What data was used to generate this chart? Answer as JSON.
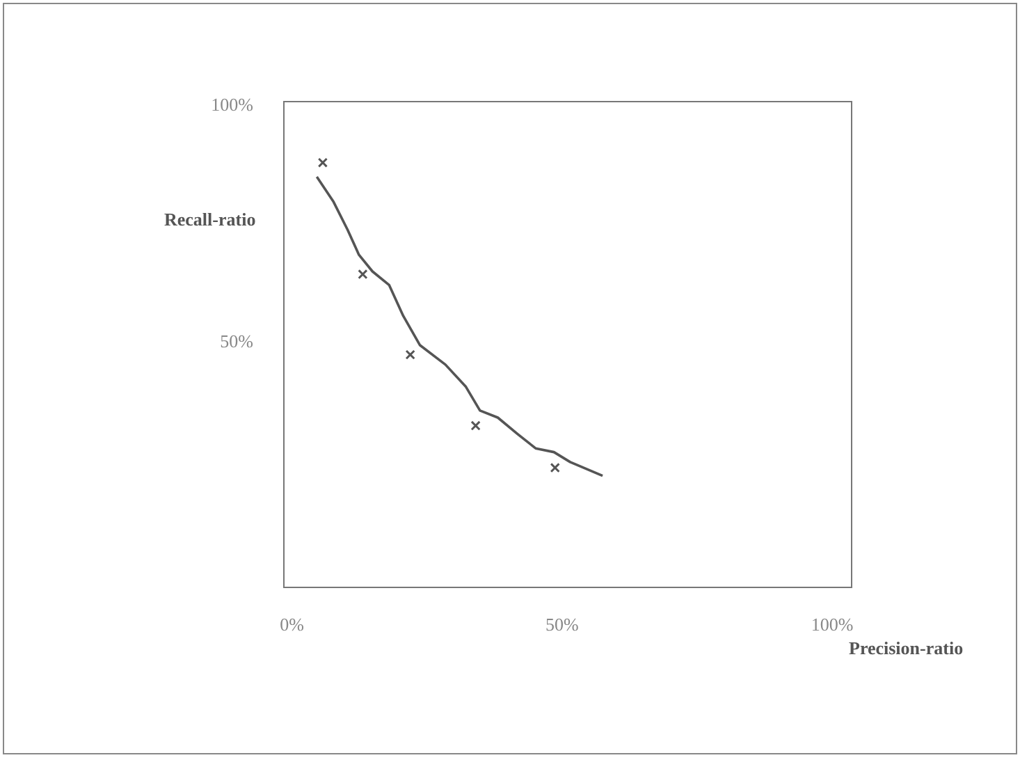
{
  "chart_data": {
    "type": "line",
    "xlabel": "Precision-ratio",
    "ylabel": "Recall-ratio",
    "xlim": [
      -1.5,
      103.6
    ],
    "ylim": [
      -1.8,
      100.9
    ],
    "xticks": [
      {
        "value": 0,
        "label": "0%"
      },
      {
        "value": 50,
        "label": "50%"
      },
      {
        "value": 100,
        "label": "100%"
      }
    ],
    "yticks": [
      {
        "value": 50,
        "label": "50%"
      },
      {
        "value": 100,
        "label": "100%"
      }
    ],
    "grid": false,
    "legend": false,
    "series": [
      {
        "type": "line",
        "color": "#555555",
        "marker": "none",
        "line_style": "solid",
        "x": [
          4.6,
          7.7,
          10.3,
          12.4,
          14.9,
          18.0,
          20.6,
          23.7,
          28.4,
          32.2,
          34.8,
          38.1,
          41.8,
          45.1,
          48.5,
          51.5,
          57.5
        ],
        "values": [
          85.0,
          79.7,
          73.8,
          68.5,
          65.0,
          62.1,
          55.6,
          49.4,
          45.3,
          40.6,
          35.6,
          34.1,
          30.6,
          27.6,
          26.8,
          24.7,
          21.8
        ]
      },
      {
        "type": "scatter",
        "color": "#555555",
        "marker": "cross",
        "x": [
          5.7,
          13.1,
          21.9,
          34.0,
          48.7
        ],
        "values": [
          88.0,
          64.4,
          47.4,
          32.4,
          23.5
        ]
      }
    ]
  }
}
